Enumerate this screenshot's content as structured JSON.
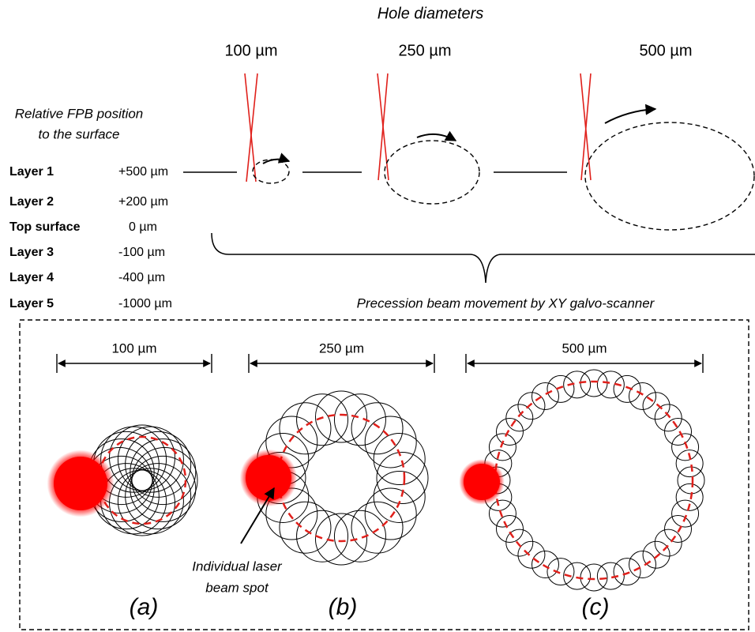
{
  "header": {
    "title": "Hole diameters",
    "diameters": [
      "100 µm",
      "250 µm",
      "500 µm"
    ]
  },
  "position_label": [
    "Relative FPB position",
    "to the surface"
  ],
  "layers": [
    {
      "name": "Layer 1",
      "position": "+500 µm"
    },
    {
      "name": "Layer 2",
      "position": "+200 µm"
    },
    {
      "name": "Top surface",
      "position": "0 µm"
    },
    {
      "name": "Layer 3",
      "position": "-100 µm"
    },
    {
      "name": "Layer 4",
      "position": "-400 µm"
    },
    {
      "name": "Layer 5",
      "position": "-1000 µm"
    }
  ],
  "precession_label": "Precession beam movement by XY galvo-scanner",
  "panels": [
    {
      "dimension": "100 µm",
      "label": "(a)"
    },
    {
      "dimension": "250 µm",
      "label": "(b)"
    },
    {
      "dimension": "500 µm",
      "label": "(c)"
    }
  ],
  "annotation": [
    "Individual laser",
    "beam spot"
  ]
}
